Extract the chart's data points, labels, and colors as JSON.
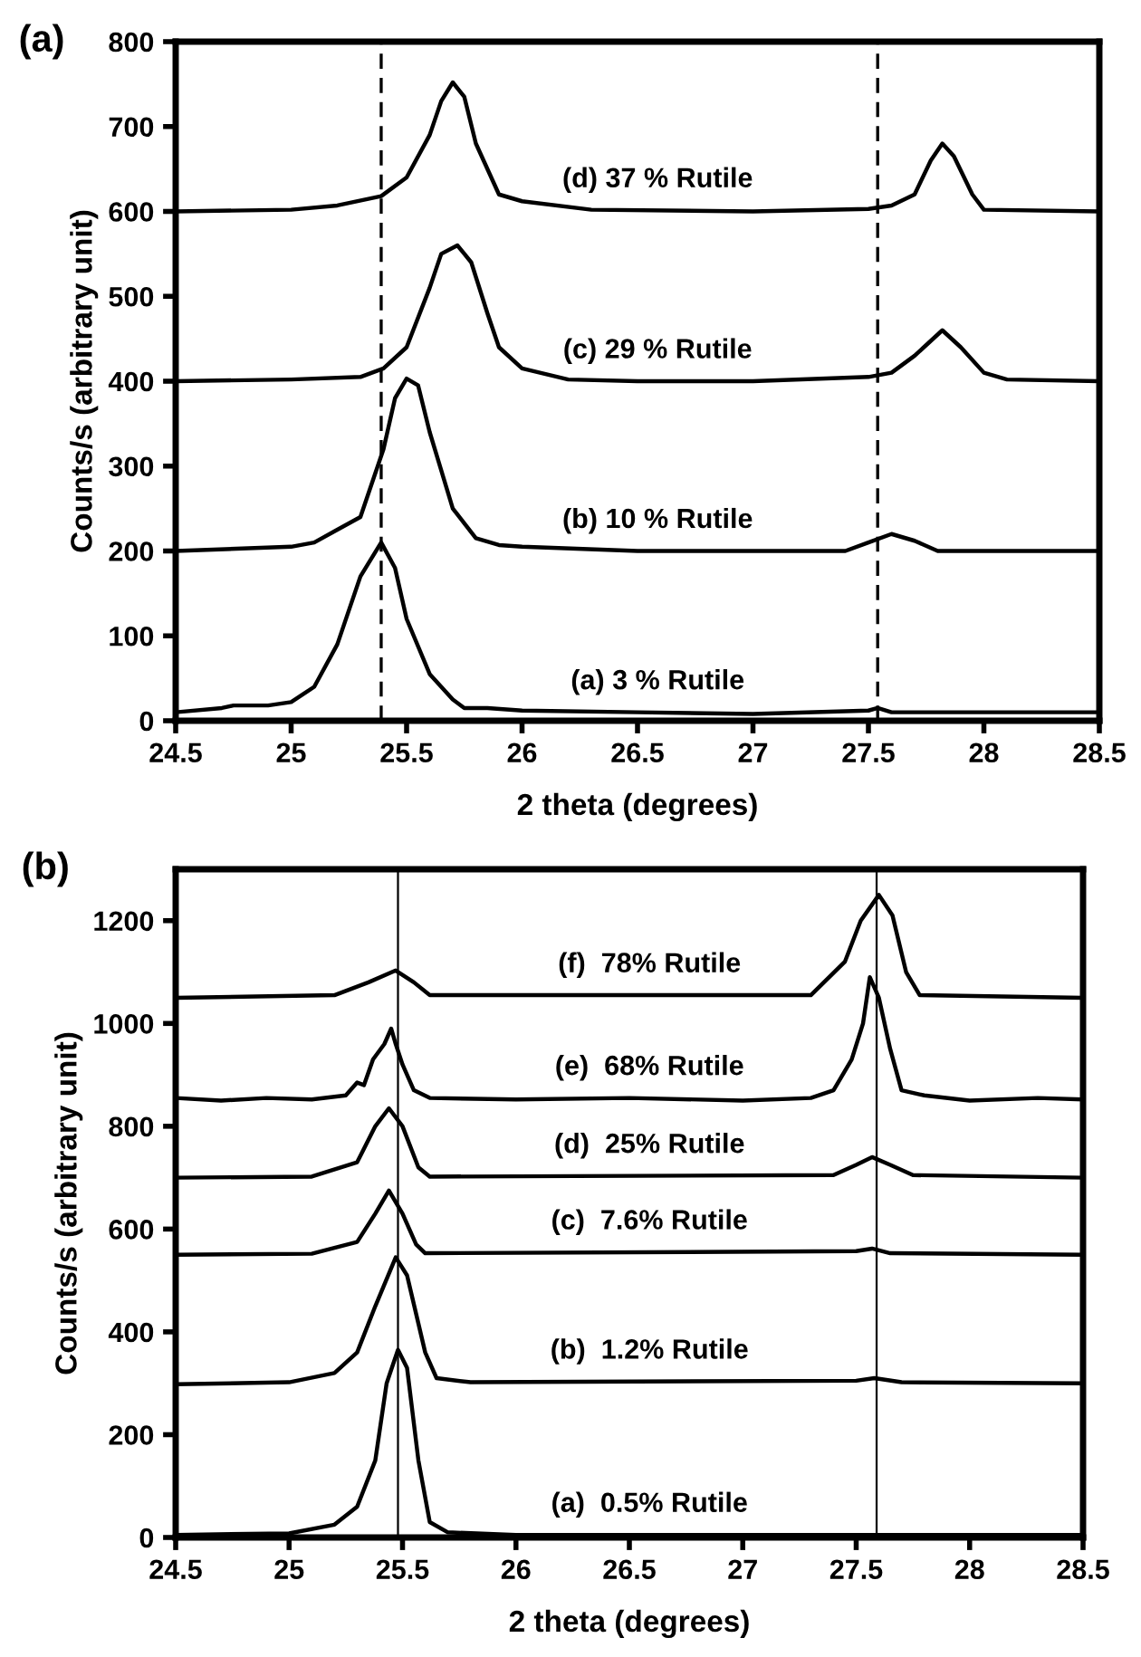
{
  "chart_data": [
    {
      "type": "line",
      "title": "(a)",
      "xlabel": "2 theta (degrees)",
      "ylabel": "Counts/s (arbitrary unit)",
      "xlim": [
        24.5,
        28.5
      ],
      "xticks": [
        24.5,
        25,
        25.5,
        26,
        26.5,
        27,
        27.5,
        28,
        28.5
      ],
      "ylim": [
        0,
        800
      ],
      "yticks": [
        0,
        100,
        200,
        300,
        400,
        500,
        600,
        700,
        800
      ],
      "grid": false,
      "legend": false,
      "marker": "none",
      "line_style": "solid",
      "series": [
        {
          "name": "(a) 3 % Rutile",
          "color": "#000000",
          "x": [
            24.5,
            24.7,
            24.75,
            24.9,
            25.0,
            25.1,
            25.2,
            25.3,
            25.39,
            25.45,
            25.5,
            25.6,
            25.7,
            25.75,
            25.85,
            26,
            26.5,
            27,
            27.5,
            27.54,
            27.6,
            28,
            28.5
          ],
          "values": [
            10,
            15,
            18,
            18,
            22,
            40,
            90,
            170,
            210,
            180,
            120,
            55,
            25,
            15,
            15,
            12,
            10,
            8,
            12,
            15,
            10,
            10,
            10
          ]
        },
        {
          "name": "(b) 10 % Rutile",
          "color": "#000000",
          "x": [
            24.5,
            25,
            25.1,
            25.2,
            25.3,
            25.4,
            25.45,
            25.5,
            25.55,
            25.6,
            25.7,
            25.8,
            25.9,
            26,
            26.5,
            27,
            27.4,
            27.5,
            27.6,
            27.7,
            27.8,
            28.5
          ],
          "values": [
            200,
            205,
            210,
            225,
            240,
            320,
            380,
            403,
            395,
            340,
            250,
            215,
            207,
            205,
            200,
            200,
            200,
            210,
            220,
            212,
            200,
            200
          ]
        },
        {
          "name": "(c) 29 % Rutile",
          "color": "#000000",
          "x": [
            24.5,
            25,
            25.3,
            25.4,
            25.5,
            25.6,
            25.65,
            25.72,
            25.78,
            25.85,
            25.9,
            26,
            26.2,
            26.5,
            27,
            27.5,
            27.6,
            27.7,
            27.82,
            27.9,
            28.0,
            28.1,
            28.5
          ],
          "values": [
            400,
            402,
            405,
            415,
            440,
            510,
            550,
            560,
            540,
            480,
            440,
            415,
            402,
            400,
            400,
            405,
            410,
            430,
            460,
            440,
            410,
            402,
            400
          ]
        },
        {
          "name": "(d) 37 % Rutile",
          "color": "#000000",
          "x": [
            24.5,
            25,
            25.2,
            25.39,
            25.5,
            25.6,
            25.65,
            25.7,
            25.75,
            25.8,
            25.9,
            26,
            26.3,
            27,
            27.5,
            27.6,
            27.7,
            27.77,
            27.82,
            27.87,
            27.95,
            28.0,
            28.5
          ],
          "values": [
            600,
            602,
            607,
            618,
            640,
            690,
            730,
            752,
            735,
            680,
            620,
            612,
            602,
            600,
            603,
            607,
            620,
            660,
            680,
            665,
            620,
            602,
            600
          ]
        }
      ],
      "ref_lines": [
        {
          "axis": "x",
          "value": 25.39,
          "color": "#000000",
          "line_style": "dashed"
        },
        {
          "axis": "x",
          "value": 27.54,
          "color": "#000000",
          "line_style": "dashed"
        }
      ]
    },
    {
      "type": "line",
      "title": "(b)",
      "xlabel": "2 theta (degrees)",
      "ylabel": "Counts/s (arbitrary unit)",
      "xlim": [
        24.5,
        28.5
      ],
      "xticks": [
        24.5,
        25,
        25.5,
        26,
        26.5,
        27,
        27.5,
        28,
        28.5
      ],
      "ylim": [
        0,
        1300
      ],
      "yticks": [
        0,
        200,
        400,
        600,
        800,
        1000,
        1200
      ],
      "grid": false,
      "legend": false,
      "marker": "none",
      "line_style": "solid",
      "series": [
        {
          "name": "(a)  0.5% Rutile",
          "color": "#000000",
          "x": [
            24.5,
            25,
            25.2,
            25.3,
            25.38,
            25.43,
            25.48,
            25.52,
            25.57,
            25.62,
            25.7,
            26,
            28.5
          ],
          "values": [
            5,
            8,
            25,
            60,
            150,
            300,
            365,
            330,
            150,
            30,
            10,
            5,
            5
          ]
        },
        {
          "name": "(b)  1.2% Rutile",
          "color": "#000000",
          "x": [
            24.5,
            25,
            25.2,
            25.3,
            25.38,
            25.47,
            25.52,
            25.6,
            25.65,
            25.8,
            27.5,
            27.58,
            27.7,
            28.5
          ],
          "values": [
            298,
            302,
            320,
            360,
            450,
            545,
            510,
            360,
            310,
            302,
            305,
            310,
            302,
            300
          ]
        },
        {
          "name": "(c)  7.6% Rutile",
          "color": "#000000",
          "x": [
            24.5,
            25.1,
            25.3,
            25.38,
            25.44,
            25.5,
            25.56,
            25.6,
            27.5,
            27.57,
            27.65,
            28.5
          ],
          "values": [
            550,
            552,
            575,
            630,
            675,
            630,
            570,
            553,
            557,
            562,
            553,
            550
          ]
        },
        {
          "name": "(d)  25% Rutile",
          "color": "#000000",
          "x": [
            24.5,
            25.1,
            25.3,
            25.38,
            25.44,
            25.5,
            25.57,
            25.62,
            27.4,
            27.5,
            27.57,
            27.65,
            27.75,
            28.5
          ],
          "values": [
            700,
            702,
            730,
            800,
            835,
            800,
            720,
            702,
            705,
            725,
            740,
            725,
            705,
            700
          ]
        },
        {
          "name": "(e)  68% Rutile",
          "color": "#000000",
          "x": [
            24.5,
            24.7,
            24.9,
            25.1,
            25.25,
            25.3,
            25.33,
            25.37,
            25.42,
            25.45,
            25.47,
            25.5,
            25.55,
            25.62,
            26,
            26.5,
            27,
            27.3,
            27.4,
            27.48,
            27.53,
            27.56,
            27.6,
            27.65,
            27.7,
            27.8,
            28.0,
            28.3,
            28.5
          ],
          "values": [
            855,
            850,
            855,
            852,
            860,
            885,
            880,
            930,
            960,
            990,
            960,
            920,
            870,
            855,
            852,
            855,
            850,
            855,
            870,
            930,
            1000,
            1090,
            1050,
            950,
            870,
            860,
            850,
            855,
            852
          ]
        },
        {
          "name": "(f)  78% Rutile",
          "color": "#000000",
          "x": [
            24.5,
            25.2,
            25.35,
            25.47,
            25.55,
            25.62,
            27.3,
            27.45,
            27.52,
            27.6,
            27.66,
            27.72,
            27.78,
            28.5
          ],
          "values": [
            1050,
            1055,
            1080,
            1103,
            1080,
            1055,
            1055,
            1120,
            1200,
            1250,
            1210,
            1100,
            1055,
            1050
          ]
        }
      ],
      "ref_lines": [
        {
          "axis": "x",
          "value": 25.48,
          "color": "#000000",
          "line_style": "solid"
        },
        {
          "axis": "x",
          "value": 27.59,
          "color": "#000000",
          "line_style": "solid"
        }
      ]
    }
  ]
}
